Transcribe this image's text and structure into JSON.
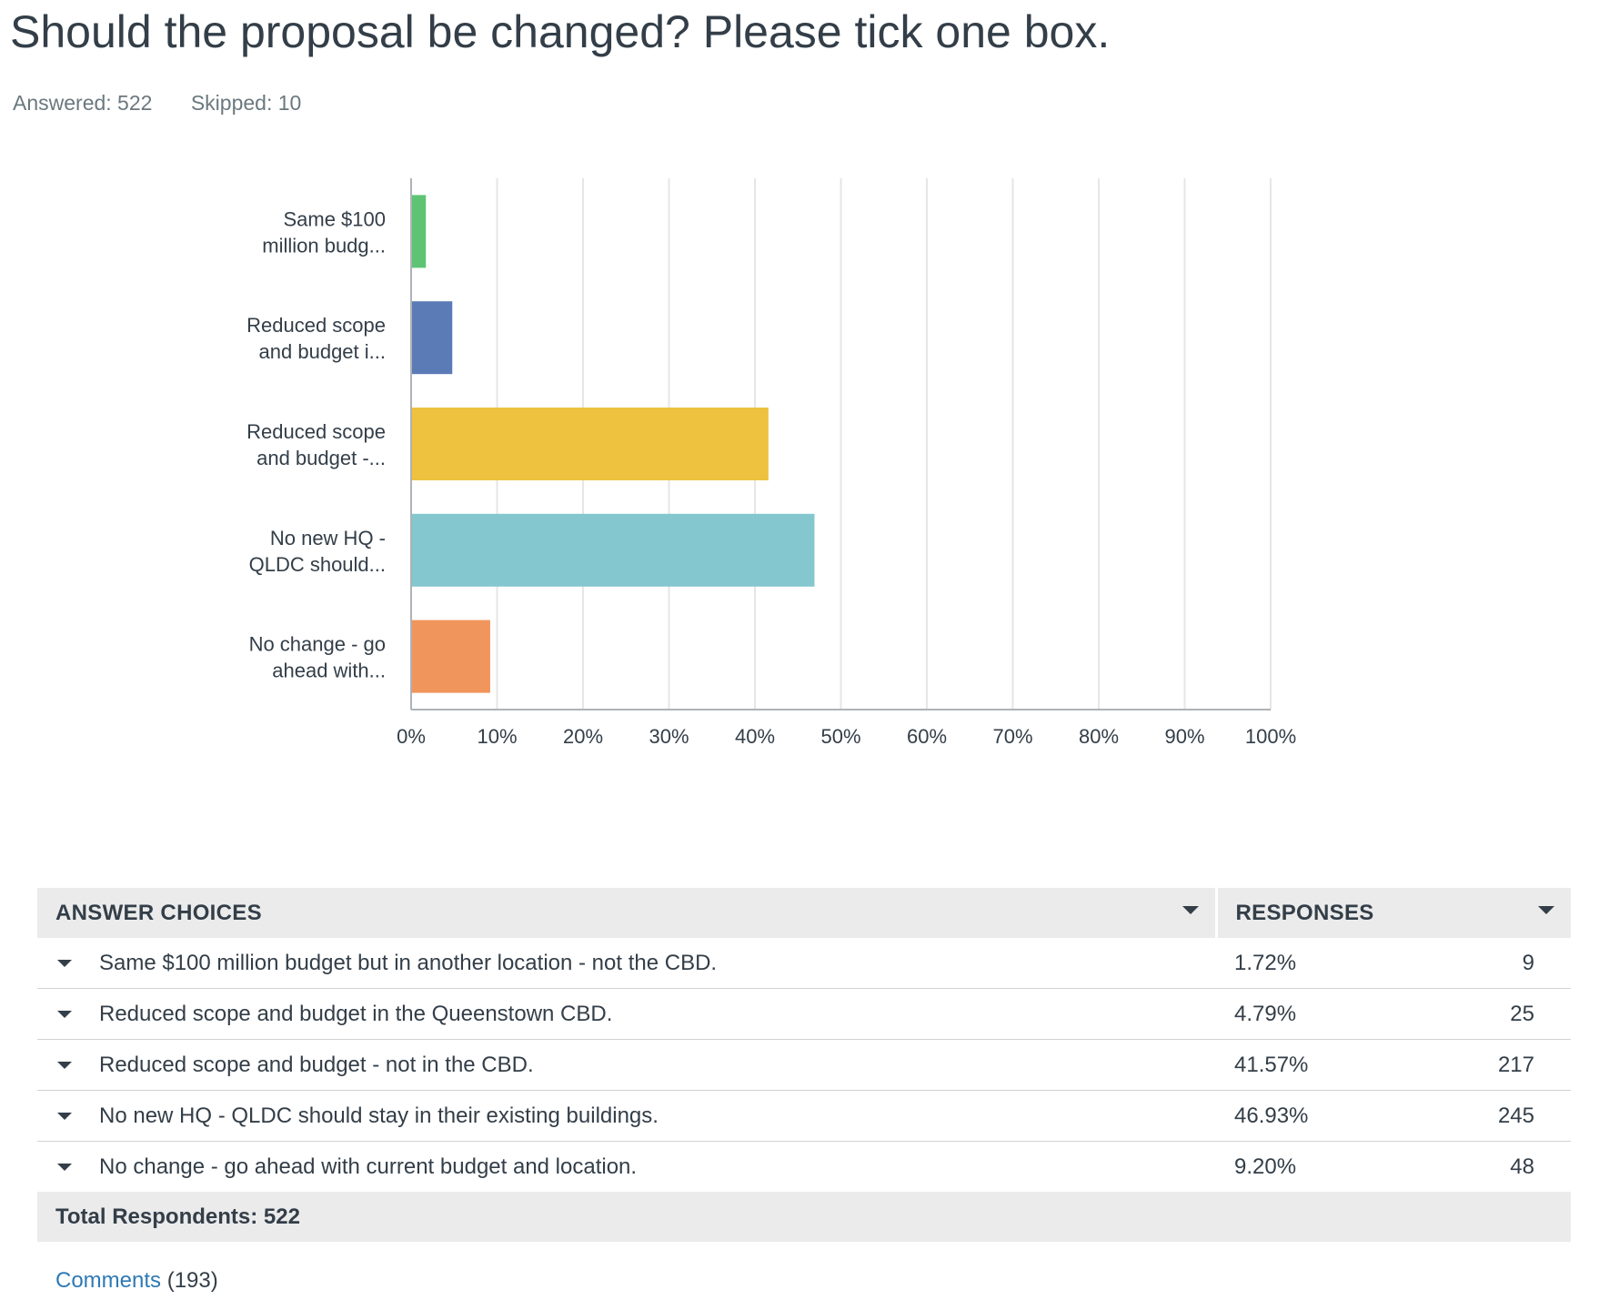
{
  "question": {
    "title": "Should the proposal be changed? Please tick one box.",
    "answered": "Answered: 522",
    "skipped": "Skipped: 10"
  },
  "chart_data": {
    "type": "bar",
    "orientation": "horizontal",
    "categories": [
      [
        "Same $100",
        "million budg..."
      ],
      [
        "Reduced scope",
        "and budget i..."
      ],
      [
        "Reduced scope",
        "and budget -..."
      ],
      [
        "No new HQ -",
        "QLDC should..."
      ],
      [
        "No change - go",
        "ahead with..."
      ]
    ],
    "values": [
      1.72,
      4.79,
      41.57,
      46.93,
      9.2
    ],
    "colors": [
      "#5ec474",
      "#5b7bb7",
      "#eec13e",
      "#84c7ce",
      "#f0955c"
    ],
    "xlim": [
      0,
      100
    ],
    "x_ticks": [
      "0%",
      "10%",
      "20%",
      "30%",
      "40%",
      "50%",
      "60%",
      "70%",
      "80%",
      "90%",
      "100%"
    ],
    "grid": true
  },
  "table": {
    "header_choices": "ANSWER CHOICES",
    "header_responses": "RESPONSES",
    "rows": [
      {
        "choice": "Same $100 million budget but in another location - not the CBD.",
        "percent": "1.72%",
        "count": "9"
      },
      {
        "choice": "Reduced scope and budget in the Queenstown CBD.",
        "percent": "4.79%",
        "count": "25"
      },
      {
        "choice": "Reduced scope and budget - not in the CBD.",
        "percent": "41.57%",
        "count": "217"
      },
      {
        "choice": "No new HQ - QLDC should stay in their existing buildings.",
        "percent": "46.93%",
        "count": "245"
      },
      {
        "choice": "No change - go ahead with current budget and location.",
        "percent": "9.20%",
        "count": "48"
      }
    ],
    "total": "Total Respondents: 522"
  },
  "comments": {
    "link": "Comments",
    "count": "(193)"
  }
}
